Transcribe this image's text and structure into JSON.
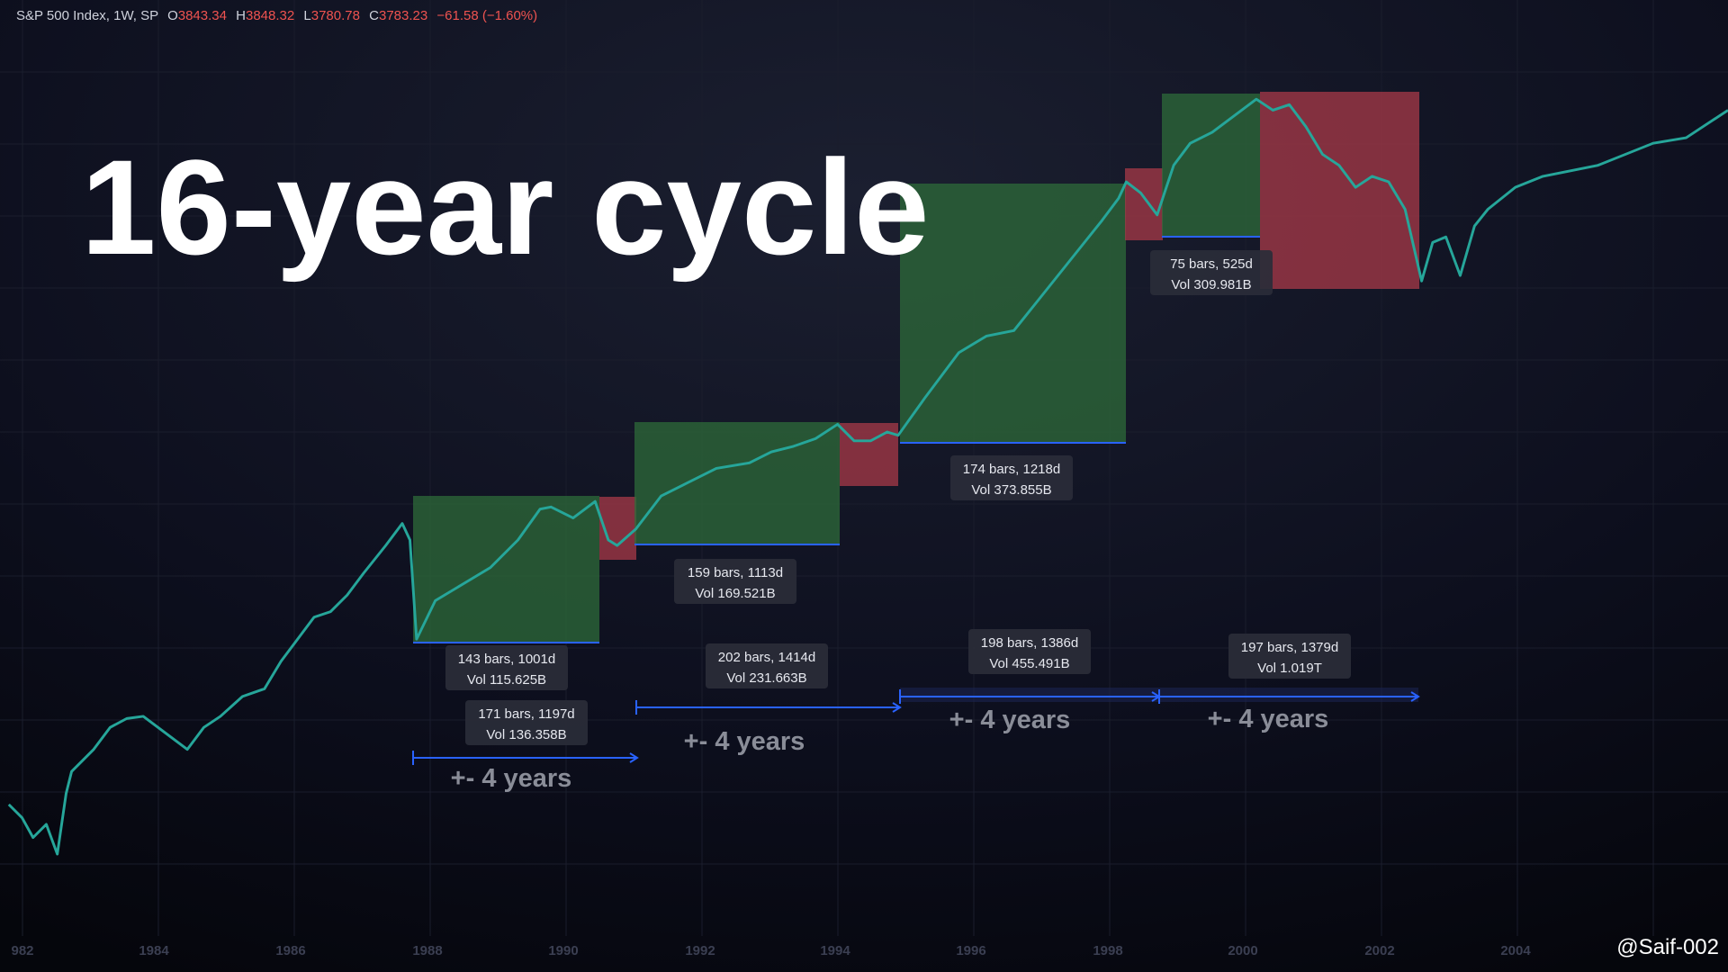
{
  "header": {
    "symbol": "S&P 500 Index, 1W, SP",
    "open_label": "O",
    "open": "3843.34",
    "high_label": "H",
    "high": "3848.32",
    "low_label": "L",
    "low": "3780.78",
    "close_label": "C",
    "close": "3783.23",
    "change": "−61.58 (−1.60%)"
  },
  "title": "16-year cycle",
  "boxes": [
    {
      "color": "#2e6b3a"
    },
    {
      "color": "#a83a48"
    },
    {
      "color": "#2e6b3a"
    },
    {
      "color": "#a83a48"
    },
    {
      "color": "#2e6b3a"
    },
    {
      "color": "#a83a48"
    },
    {
      "color": "#2e6b3a"
    },
    {
      "color": "#a83a48"
    }
  ],
  "measure_labels": [
    {
      "bars": "143 bars, 1001d",
      "volume": "Vol 115.625B"
    },
    {
      "bars": "171 bars, 1197d",
      "volume": "Vol 136.358B"
    },
    {
      "bars": "159 bars, 1113d",
      "volume": "Vol 169.521B"
    },
    {
      "bars": "202 bars, 1414d",
      "volume": "Vol 231.663B"
    },
    {
      "bars": "174 bars, 1218d",
      "volume": "Vol 373.855B"
    },
    {
      "bars": "198 bars, 1386d",
      "volume": "Vol 455.491B"
    },
    {
      "bars": "75 bars, 525d",
      "volume": "Vol 309.981B"
    },
    {
      "bars": "197 bars, 1379d",
      "volume": "Vol 1.019T"
    }
  ],
  "ranges": [
    "+- 4 years",
    "+- 4 years",
    "+- 4 years",
    "+- 4 years"
  ],
  "x_axis": [
    "982",
    "1984",
    "1986",
    "1988",
    "1990",
    "1992",
    "1994",
    "1996",
    "1998",
    "2000",
    "2002",
    "2004"
  ],
  "watermark": "@Saif-002"
}
